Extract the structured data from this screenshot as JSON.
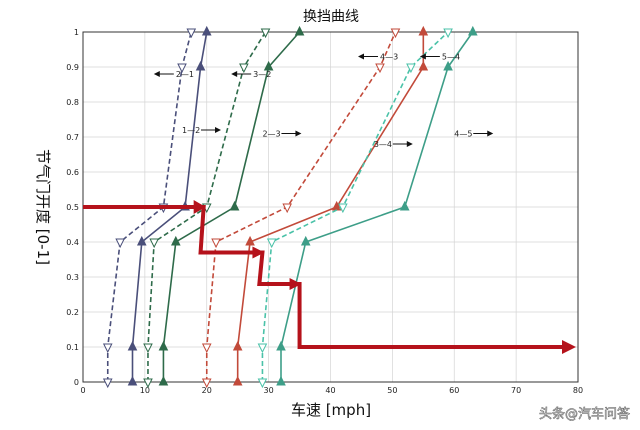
{
  "chart_data": {
    "type": "line",
    "title": "换挡曲线",
    "xlabel": "车速 [mph]",
    "ylabel": "节气门开度 [0-1]",
    "xlim": [
      0,
      80
    ],
    "ylim": [
      0,
      1
    ],
    "xticks": [
      "0",
      "10",
      "20",
      "30",
      "40",
      "50",
      "60",
      "70",
      "80"
    ],
    "yticks": [
      "0",
      "0.1",
      "0.2",
      "0.3",
      "0.4",
      "0.5",
      "0.6",
      "0.7",
      "0.8",
      "0.9",
      "1"
    ],
    "grid": true,
    "series": [
      {
        "label": "1-2",
        "color": "#4a4f7a",
        "dashed": false,
        "marker": "up",
        "points": [
          [
            8,
            0
          ],
          [
            8,
            0.1
          ],
          [
            9.5,
            0.4
          ],
          [
            16.5,
            0.5
          ],
          [
            19,
            0.9
          ],
          [
            20,
            1
          ]
        ]
      },
      {
        "label": "2-1",
        "color": "#4a4f7a",
        "dashed": true,
        "marker": "down",
        "points": [
          [
            4,
            0
          ],
          [
            4,
            0.1
          ],
          [
            6,
            0.4
          ],
          [
            13,
            0.5
          ],
          [
            16,
            0.9
          ],
          [
            17.5,
            1
          ]
        ]
      },
      {
        "label": "2-3",
        "color": "#2e6b4a",
        "dashed": false,
        "marker": "up",
        "points": [
          [
            13,
            0
          ],
          [
            13,
            0.1
          ],
          [
            15,
            0.4
          ],
          [
            24.5,
            0.5
          ],
          [
            30,
            0.9
          ],
          [
            35,
            1
          ]
        ]
      },
      {
        "label": "3-2",
        "color": "#2e6b4a",
        "dashed": true,
        "marker": "down",
        "points": [
          [
            10.5,
            0
          ],
          [
            10.5,
            0.1
          ],
          [
            11.5,
            0.4
          ],
          [
            20,
            0.5
          ],
          [
            26,
            0.9
          ],
          [
            29.5,
            1
          ]
        ]
      },
      {
        "label": "3-4",
        "color": "#c24a3a",
        "dashed": false,
        "marker": "up",
        "points": [
          [
            25,
            0
          ],
          [
            25,
            0.1
          ],
          [
            27,
            0.4
          ],
          [
            41,
            0.5
          ],
          [
            55,
            0.9
          ],
          [
            55,
            1
          ]
        ]
      },
      {
        "label": "4-3",
        "color": "#c24a3a",
        "dashed": true,
        "marker": "down",
        "points": [
          [
            20,
            0
          ],
          [
            20,
            0.1
          ],
          [
            21.5,
            0.4
          ],
          [
            33,
            0.5
          ],
          [
            48,
            0.9
          ],
          [
            50.5,
            1
          ]
        ]
      },
      {
        "label": "4-5",
        "color": "#3d9e88",
        "dashed": false,
        "marker": "up",
        "points": [
          [
            32,
            0
          ],
          [
            32,
            0.1
          ],
          [
            36,
            0.4
          ],
          [
            52,
            0.5
          ],
          [
            59,
            0.9
          ],
          [
            63,
            1
          ]
        ]
      },
      {
        "label": "5-4",
        "color": "#4ac2a8",
        "dashed": true,
        "marker": "down",
        "points": [
          [
            29,
            0
          ],
          [
            29,
            0.1
          ],
          [
            30.5,
            0.4
          ],
          [
            42,
            0.5
          ],
          [
            53,
            0.9
          ],
          [
            59,
            1
          ]
        ]
      }
    ],
    "annotations": [
      {
        "text": "2—1",
        "arrow": "left",
        "x": 15,
        "y": 0.88
      },
      {
        "text": "1—2",
        "arrow": "right",
        "x": 16,
        "y": 0.72
      },
      {
        "text": "3—2",
        "arrow": "left",
        "x": 27.5,
        "y": 0.88
      },
      {
        "text": "2—3",
        "arrow": "right",
        "x": 29,
        "y": 0.71
      },
      {
        "text": "3—4",
        "arrow": "right",
        "x": 47,
        "y": 0.68
      },
      {
        "text": "4—3",
        "arrow": "left",
        "x": 48,
        "y": 0.93
      },
      {
        "text": "5—4",
        "arrow": "left",
        "x": 58,
        "y": 0.93
      },
      {
        "text": "4—5",
        "arrow": "right",
        "x": 60,
        "y": 0.71
      }
    ],
    "red_path": [
      [
        0,
        0.5
      ],
      [
        19.5,
        0.5
      ],
      [
        19,
        0.37
      ],
      [
        29,
        0.37
      ],
      [
        28.5,
        0.28
      ],
      [
        35,
        0.28
      ],
      [
        35,
        0.1
      ],
      [
        80,
        0.1
      ]
    ]
  },
  "watermark": "头条@汽车问答"
}
